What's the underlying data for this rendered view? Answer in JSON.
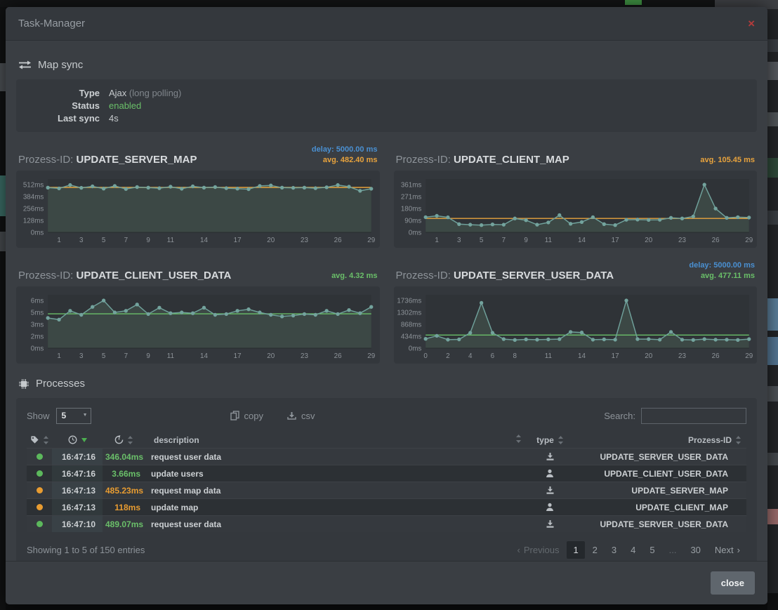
{
  "modal": {
    "title": "Task-Manager",
    "close_x": "×",
    "footer_close_label": "close"
  },
  "map_sync": {
    "heading": "Map sync",
    "icon": "sync-arrows-icon",
    "type_label": "Type",
    "type_value": "Ajax",
    "type_suffix": "(long polling)",
    "status_label": "Status",
    "status_value": "enabled",
    "status_color": "#6abf69",
    "last_sync_label": "Last sync",
    "last_sync_value": "4s"
  },
  "chart_data": [
    {
      "type": "area",
      "title_prefix": "Prozess-ID:",
      "title": "UPDATE_SERVER_MAP",
      "delay_label": "delay: 5000.00 ms",
      "delay_color": "#4a90d2",
      "avg_label": "avg. 482.40 ms",
      "avg_value": 482.4,
      "avg_color": "#e8a33d",
      "ylim": [
        0,
        573
      ],
      "y_tick_values": [
        0,
        128,
        256,
        384,
        512
      ],
      "y_tick_labels": [
        "0ms",
        "128ms",
        "256ms",
        "384ms",
        "512ms"
      ],
      "x_tick_indices": [
        1,
        3,
        5,
        7,
        9,
        11,
        14,
        17,
        20,
        23,
        26,
        29
      ],
      "values": [
        480,
        472,
        508,
        478,
        494,
        470,
        498,
        466,
        486,
        480,
        474,
        490,
        468,
        494,
        480,
        486,
        474,
        470,
        464,
        498,
        504,
        480,
        478,
        480,
        474,
        484,
        508,
        490,
        446,
        468
      ]
    },
    {
      "type": "area",
      "title_prefix": "Prozess-ID:",
      "title": "UPDATE_CLIENT_MAP",
      "avg_label": "avg. 105.45 ms",
      "avg_value": 105.45,
      "avg_color": "#e8a33d",
      "ylim": [
        0,
        404
      ],
      "y_tick_values": [
        0,
        90,
        180,
        271,
        361
      ],
      "y_tick_labels": [
        "0ms",
        "90ms",
        "180ms",
        "271ms",
        "361ms"
      ],
      "x_tick_indices": [
        1,
        3,
        5,
        7,
        9,
        11,
        14,
        17,
        20,
        23,
        26,
        29
      ],
      "values": [
        115,
        125,
        114,
        62,
        58,
        55,
        60,
        58,
        105,
        92,
        58,
        75,
        130,
        65,
        78,
        115,
        62,
        55,
        95,
        97,
        94,
        95,
        110,
        105,
        120,
        361,
        180,
        110,
        115,
        112
      ]
    },
    {
      "type": "area",
      "title_prefix": "Prozess-ID:",
      "title": "UPDATE_CLIENT_USER_DATA",
      "avg_label": "avg. 4.32 ms",
      "avg_value": 4.32,
      "avg_color": "#6abf69",
      "ylim": [
        0,
        6.72
      ],
      "y_tick_values": [
        0,
        1.5,
        3,
        4.5,
        6
      ],
      "y_tick_labels": [
        "0ms",
        "2ms",
        "3ms",
        "5ms",
        "6ms"
      ],
      "x_tick_indices": [
        1,
        3,
        5,
        7,
        9,
        11,
        14,
        17,
        20,
        23,
        26,
        29
      ],
      "values": [
        3.8,
        3.6,
        4.7,
        4.2,
        5.2,
        6.0,
        4.5,
        4.7,
        5.5,
        4.3,
        5.1,
        4.4,
        4.5,
        4.4,
        5.1,
        4.2,
        4.3,
        4.7,
        4.9,
        4.5,
        4.2,
        4.0,
        4.1,
        4.3,
        4.2,
        4.7,
        4.3,
        4.8,
        4.4,
        5.2
      ]
    },
    {
      "type": "area",
      "title_prefix": "Prozess-ID:",
      "title": "UPDATE_SERVER_USER_DATA",
      "delay_label": "delay: 5000.00 ms",
      "delay_color": "#4a90d2",
      "avg_label": "avg. 477.11 ms",
      "avg_value": 477.11,
      "avg_color": "#6abf69",
      "ylim": [
        0,
        1944
      ],
      "y_tick_values": [
        0,
        434,
        868,
        1302,
        1736
      ],
      "y_tick_labels": [
        "0ms",
        "434ms",
        "868ms",
        "1302ms",
        "1736ms"
      ],
      "x_tick_indices": [
        0,
        2,
        4,
        6,
        8,
        11,
        14,
        17,
        20,
        23,
        26,
        29
      ],
      "values": [
        340,
        450,
        310,
        320,
        560,
        1650,
        560,
        330,
        300,
        320,
        310,
        320,
        330,
        590,
        570,
        310,
        320,
        310,
        1736,
        330,
        330,
        310,
        590,
        310,
        300,
        330,
        310,
        310,
        300,
        330
      ]
    }
  ],
  "processes": {
    "heading": "Processes",
    "icon": "chip-icon",
    "show_label": "Show",
    "show_value": "5",
    "copy_label": "copy",
    "copy_icon": "copy-icon",
    "csv_label": "csv",
    "csv_icon": "download-icon",
    "search_label": "Search:",
    "columns": {
      "status_icon": "tag-icon",
      "time_icon": "clock-icon",
      "duration_icon": "history-icon",
      "description": "description",
      "type": "type",
      "prozess_id": "Prozess-ID"
    },
    "rows": [
      {
        "status_color": "#5cb85c",
        "time": "16:47:16",
        "duration": "346.04ms",
        "duration_color": "#6abf69",
        "description": "request user data",
        "type_icon": "server-download-icon",
        "prozess_id": "UPDATE_SERVER_USER_DATA"
      },
      {
        "status_color": "#5cb85c",
        "time": "16:47:16",
        "duration": "3.66ms",
        "duration_color": "#6abf69",
        "description": "update users",
        "type_icon": "client-user-icon",
        "prozess_id": "UPDATE_CLIENT_USER_DATA"
      },
      {
        "status_color": "#e89c31",
        "time": "16:47:13",
        "duration": "485.23ms",
        "duration_color": "#e89c31",
        "description": "request map data",
        "type_icon": "server-download-icon",
        "prozess_id": "UPDATE_SERVER_MAP"
      },
      {
        "status_color": "#e89c31",
        "time": "16:47:13",
        "duration": "118ms",
        "duration_color": "#e89c31",
        "description": "update map",
        "type_icon": "client-user-icon",
        "prozess_id": "UPDATE_CLIENT_MAP"
      },
      {
        "status_color": "#5cb85c",
        "time": "16:47:10",
        "duration": "489.07ms",
        "duration_color": "#6abf69",
        "description": "request user data",
        "type_icon": "server-download-icon",
        "prozess_id": "UPDATE_SERVER_USER_DATA"
      }
    ],
    "info": "Showing 1 to 5 of 150 entries",
    "pagination": {
      "previous": "Previous",
      "next": "Next",
      "pages": [
        "1",
        "2",
        "3",
        "4",
        "5",
        "...",
        "30"
      ],
      "active": "1"
    }
  }
}
